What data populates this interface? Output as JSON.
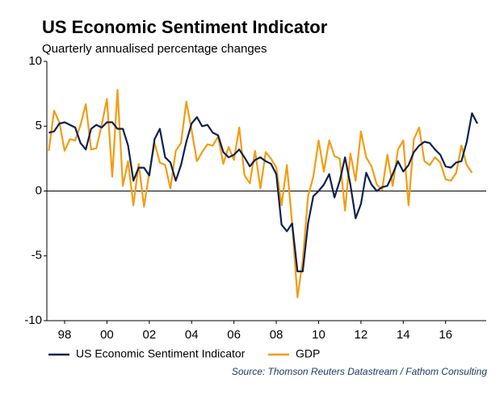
{
  "chart_data": {
    "type": "line",
    "title": "US Economic Sentiment Indicator",
    "subtitle": "Quarterly annualised percentage changes",
    "source": "Source: Thomson Reuters Datastream / Fathom Consulting",
    "x": [
      1997.25,
      1997.5,
      1997.75,
      1998,
      1998.25,
      1998.5,
      1998.75,
      1999,
      1999.25,
      1999.5,
      1999.75,
      2000,
      2000.25,
      2000.5,
      2000.75,
      2001,
      2001.25,
      2001.5,
      2001.75,
      2002,
      2002.25,
      2002.5,
      2002.75,
      2003,
      2003.25,
      2003.5,
      2003.75,
      2004,
      2004.25,
      2004.5,
      2004.75,
      2005,
      2005.25,
      2005.5,
      2005.75,
      2006,
      2006.25,
      2006.5,
      2006.75,
      2007,
      2007.25,
      2007.5,
      2007.75,
      2008,
      2008.25,
      2008.5,
      2008.75,
      2009,
      2009.25,
      2009.5,
      2009.75,
      2010,
      2010.25,
      2010.5,
      2010.75,
      2011,
      2011.25,
      2011.5,
      2011.75,
      2012,
      2012.25,
      2012.5,
      2012.75,
      2013,
      2013.25,
      2013.5,
      2013.75,
      2014,
      2014.25,
      2014.5,
      2014.75,
      2015,
      2015.25,
      2015.5,
      2015.75,
      2016,
      2016.25,
      2016.5,
      2016.75,
      2017,
      2017.25,
      2017.5
    ],
    "series": [
      {
        "name": "US Economic Sentiment Indicator",
        "color": "#0d2150",
        "values": [
          4.5,
          4.6,
          5.2,
          5.3,
          5.1,
          4.9,
          3.7,
          3.2,
          4.8,
          5.1,
          4.9,
          5.3,
          5.3,
          4.8,
          4.8,
          3.5,
          0.8,
          1.8,
          1.8,
          1.2,
          4.0,
          4.8,
          2.6,
          2.2,
          0.8,
          2.0,
          3.8,
          5.2,
          5.7,
          5.0,
          5.1,
          4.5,
          4.3,
          3.0,
          2.6,
          2.8,
          3.2,
          2.6,
          1.9,
          2.4,
          2.6,
          2.3,
          2.1,
          1.3,
          -2.6,
          -3.1,
          -2.5,
          -6.2,
          -6.2,
          -2.5,
          -0.4,
          0,
          0.5,
          1.3,
          -0.5,
          0.8,
          2.6,
          0.5,
          -2.1,
          -1.0,
          1.4,
          0.5,
          0,
          0.3,
          0.4,
          1.3,
          2.3,
          1.5,
          2.0,
          3.0,
          3.5,
          3.8,
          3.7,
          3.2,
          2.8,
          1.9,
          1.8,
          2.2,
          2.3,
          3.8,
          6.0,
          5.2
        ]
      },
      {
        "name": "GDP",
        "color": "#f39c12",
        "values": [
          3.1,
          6.2,
          5.3,
          3.1,
          4.0,
          3.9,
          5.1,
          6.7,
          3.2,
          3.3,
          5.1,
          7.1,
          1.1,
          7.8,
          0.4,
          2.3,
          -1.1,
          2.1,
          -1.2,
          1.4,
          3.7,
          2.2,
          2.0,
          0.2,
          3.1,
          3.7,
          6.9,
          4.7,
          2.3,
          3.0,
          3.6,
          3.5,
          4.2,
          2.1,
          3.4,
          2.4,
          4.9,
          1.2,
          0.6,
          3.1,
          0.2,
          3.0,
          2.5,
          1.8,
          -1.1,
          2.0,
          -2.5,
          -8.2,
          -5.4,
          -0.4,
          1.1,
          3.9,
          1.5,
          3.9,
          2.7,
          2.5,
          -1.5,
          2.9,
          0.8,
          4.6,
          2.6,
          1.9,
          0.5,
          0.1,
          2.8,
          0.4,
          3.2,
          3.9,
          -1.1,
          4.0,
          4.9,
          2.3,
          2.0,
          2.6,
          2.2,
          0.9,
          0.8,
          1.4,
          3.5,
          2.0,
          1.4,
          null
        ]
      }
    ],
    "xlim": [
      1997.16,
      2017.92
    ],
    "xticks": [
      {
        "value": 1998,
        "label": "98"
      },
      {
        "value": 2000,
        "label": "00"
      },
      {
        "value": 2002,
        "label": "02"
      },
      {
        "value": 2004,
        "label": "04"
      },
      {
        "value": 2006,
        "label": "06"
      },
      {
        "value": 2008,
        "label": "08"
      },
      {
        "value": 2010,
        "label": "10"
      },
      {
        "value": 2012,
        "label": "12"
      },
      {
        "value": 2014,
        "label": "14"
      },
      {
        "value": 2016,
        "label": "16"
      }
    ],
    "ylim": [
      -10,
      10
    ],
    "yticks": [
      10,
      5,
      0,
      -5,
      -10
    ],
    "grid": false
  }
}
